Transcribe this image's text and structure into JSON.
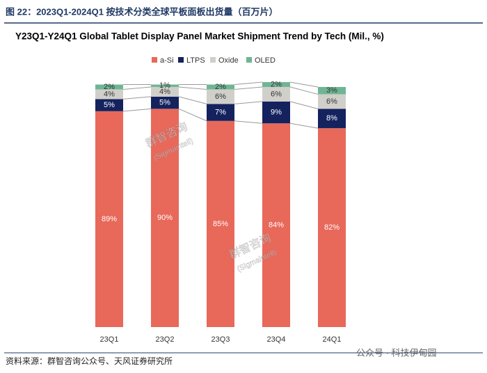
{
  "header": {
    "title": "图 22：2023Q1-2024Q1 按技术分类全球平板面板出货量（百万片）"
  },
  "chart_data": {
    "type": "stacked_bar",
    "title": "Y23Q1-Y24Q1 Global Tablet Display Panel Market Shipment Trend by Tech (Mil., %)",
    "categories": [
      "23Q1",
      "23Q2",
      "23Q3",
      "23Q4",
      "24Q1"
    ],
    "series": [
      {
        "name": "a-Si",
        "color": "#e8685a",
        "values": [
          89,
          90,
          85,
          84,
          82
        ],
        "value_labels": [
          "89%",
          "90%",
          "85%",
          "84%",
          "82%"
        ]
      },
      {
        "name": "LTPS",
        "color": "#14225e",
        "values": [
          5,
          5,
          7,
          9,
          8
        ],
        "value_labels": [
          "5%",
          "5%",
          "7%",
          "9%",
          "8%"
        ]
      },
      {
        "name": "Oxide",
        "color": "#d0cfca",
        "values": [
          4,
          4,
          6,
          6,
          6
        ],
        "value_labels": [
          "4%",
          "4%",
          "6%",
          "6%",
          "6%"
        ]
      },
      {
        "name": "OLED",
        "color": "#6fb594",
        "values": [
          2,
          1,
          2,
          2,
          3
        ],
        "value_labels": [
          "2%",
          "1%",
          "2%",
          "2%",
          "3%"
        ]
      }
    ],
    "legend": "top"
  },
  "watermark": {
    "brand": "群智咨询",
    "brand_en": "(Sigmaintell)",
    "account": "公众号 · 科技伊甸园"
  },
  "footer": {
    "source": "资料来源：群智咨询公众号、天风证券研究所"
  }
}
